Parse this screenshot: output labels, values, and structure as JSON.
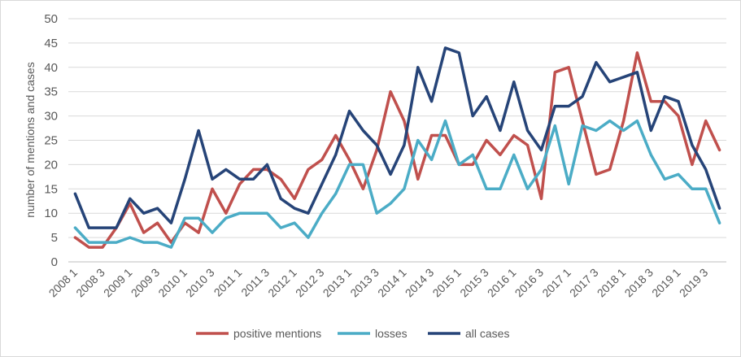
{
  "chart_data": {
    "type": "line",
    "title": "",
    "xlabel": "",
    "ylabel": "number of mentions and cases",
    "ylim": [
      0,
      50
    ],
    "yticks": [
      0,
      5,
      10,
      15,
      20,
      25,
      30,
      35,
      40,
      45,
      50
    ],
    "grid": true,
    "legend_position": "bottom",
    "x_tick_labels": [
      "2008 1",
      "2008 3",
      "2009 1",
      "2009 3",
      "2010 1",
      "2010 3",
      "2011 1",
      "2011 3",
      "2012 1",
      "2012 3",
      "2013 1",
      "2013 3",
      "2014 1",
      "2014 3",
      "2015 1",
      "2015 3",
      "2016 1",
      "2016 3",
      "2017 1",
      "2017 3",
      "2018 1",
      "2018 3",
      "2019 1",
      "2019 3"
    ],
    "categories": [
      "2008 1",
      "2008 2",
      "2008 3",
      "2008 4",
      "2009 1",
      "2009 2",
      "2009 3",
      "2009 4",
      "2010 1",
      "2010 2",
      "2010 3",
      "2010 4",
      "2011 1",
      "2011 2",
      "2011 3",
      "2011 4",
      "2012 1",
      "2012 2",
      "2012 3",
      "2012 4",
      "2013 1",
      "2013 2",
      "2013 3",
      "2013 4",
      "2014 1",
      "2014 2",
      "2014 3",
      "2014 4",
      "2015 1",
      "2015 2",
      "2015 3",
      "2015 4",
      "2016 1",
      "2016 2",
      "2016 3",
      "2016 4",
      "2017 1",
      "2017 2",
      "2017 3",
      "2017 4",
      "2018 1",
      "2018 2",
      "2018 3",
      "2018 4",
      "2019 1",
      "2019 2",
      "2019 3",
      "2019 4"
    ],
    "series": [
      {
        "name": "positive mentions",
        "color": "#c0504d",
        "values": [
          5,
          3,
          3,
          7,
          12,
          6,
          8,
          4,
          8,
          6,
          15,
          10,
          16,
          19,
          19,
          17,
          13,
          19,
          21,
          26,
          21,
          15,
          23,
          35,
          29,
          17,
          26,
          26,
          20,
          20,
          25,
          22,
          26,
          24,
          13,
          39,
          40,
          29,
          18,
          19,
          29,
          43,
          33,
          33,
          30,
          20,
          29,
          23
        ]
      },
      {
        "name": "losses",
        "color": "#4bacc6",
        "values": [
          7,
          4,
          4,
          4,
          5,
          4,
          4,
          3,
          9,
          9,
          6,
          9,
          10,
          10,
          10,
          7,
          8,
          5,
          10,
          14,
          20,
          20,
          10,
          12,
          15,
          25,
          21,
          29,
          20,
          22,
          15,
          15,
          22,
          15,
          19,
          28,
          16,
          28,
          27,
          29,
          27,
          29,
          22,
          17,
          18,
          15,
          15,
          8
        ]
      },
      {
        "name": "all cases",
        "color": "#264478",
        "values": [
          14,
          7,
          7,
          7,
          13,
          10,
          11,
          8,
          17,
          27,
          17,
          19,
          17,
          17,
          20,
          13,
          11,
          10,
          16,
          22,
          31,
          27,
          24,
          18,
          24,
          40,
          33,
          44,
          43,
          30,
          34,
          27,
          37,
          27,
          23,
          32,
          32,
          34,
          41,
          37,
          38,
          39,
          27,
          34,
          33,
          24,
          19,
          11
        ]
      }
    ]
  }
}
